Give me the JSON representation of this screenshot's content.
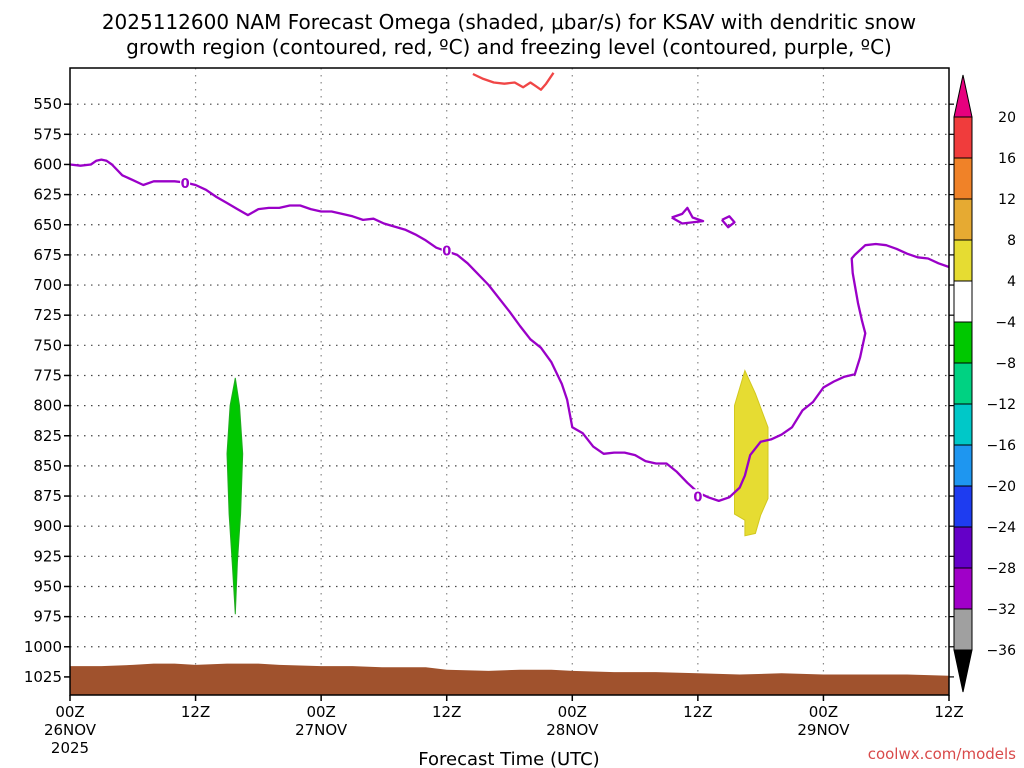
{
  "chart_data": {
    "type": "time-height",
    "title_line1": "2025112600 NAM Forecast Omega (shaded, μbar/s) for KSAV with dendritic snow",
    "title_line2": "growth region (contoured, red, ºC) and freezing level (contoured, purple, ºC)",
    "xlabel": "Forecast Time (UTC)",
    "credit": "coolwx.com/models",
    "start_hour": 0,
    "end_hour": 84,
    "ylim": [
      1040,
      520
    ],
    "y_ticks": [
      550,
      575,
      600,
      625,
      650,
      675,
      700,
      725,
      750,
      775,
      800,
      825,
      850,
      875,
      900,
      925,
      950,
      975,
      1000,
      1025
    ],
    "x_ticks": [
      {
        "hour": 0,
        "lines": [
          "00Z",
          "26NOV",
          "2025"
        ]
      },
      {
        "hour": 12,
        "lines": [
          "12Z"
        ]
      },
      {
        "hour": 24,
        "lines": [
          "00Z",
          "27NOV"
        ]
      },
      {
        "hour": 36,
        "lines": [
          "12Z"
        ]
      },
      {
        "hour": 48,
        "lines": [
          "00Z",
          "28NOV"
        ]
      },
      {
        "hour": 60,
        "lines": [
          "12Z"
        ]
      },
      {
        "hour": 72,
        "lines": [
          "00Z",
          "29NOV"
        ]
      },
      {
        "hour": 84,
        "lines": [
          "12Z"
        ]
      }
    ],
    "colorbar": {
      "labels": [
        "20",
        "16",
        "12",
        "8",
        "4",
        "−4",
        "−8",
        "−12",
        "−16",
        "−20",
        "−24",
        "−28",
        "−32",
        "−36"
      ],
      "top_arrow_color": "#e6007e",
      "bottom_arrow_color": "#000000",
      "colors": [
        "#f03c3c",
        "#f08228",
        "#e6aa32",
        "#e6dc32",
        "#ffffff",
        "#00c800",
        "#00d282",
        "#00c8c8",
        "#1e96f0",
        "#1e3cf0",
        "#6400c8",
        "#a000c8",
        "#a0a0a0"
      ]
    },
    "freezing_level": {
      "color": "#9a00c8",
      "label": "0",
      "label_points": [
        {
          "t": 11,
          "p": 616
        },
        {
          "t": 36,
          "p": 672
        },
        {
          "t": 60,
          "p": 876
        }
      ],
      "points": [
        [
          0,
          600
        ],
        [
          1,
          601
        ],
        [
          2,
          600
        ],
        [
          2.5,
          597
        ],
        [
          3,
          596
        ],
        [
          3.5,
          597
        ],
        [
          4,
          600
        ],
        [
          5,
          609
        ],
        [
          6,
          613
        ],
        [
          7,
          617
        ],
        [
          8,
          614
        ],
        [
          10,
          614
        ],
        [
          11,
          615
        ],
        [
          12,
          617
        ],
        [
          13,
          621
        ],
        [
          14,
          627
        ],
        [
          15,
          632
        ],
        [
          16,
          637
        ],
        [
          17,
          642
        ],
        [
          18,
          637
        ],
        [
          19,
          636
        ],
        [
          20,
          636
        ],
        [
          21,
          634
        ],
        [
          22,
          634
        ],
        [
          23,
          637
        ],
        [
          24,
          639
        ],
        [
          25,
          639
        ],
        [
          26,
          641
        ],
        [
          27,
          643
        ],
        [
          28,
          646
        ],
        [
          29,
          645
        ],
        [
          30,
          649
        ],
        [
          32,
          654
        ],
        [
          33,
          658
        ],
        [
          34,
          663
        ],
        [
          35,
          669
        ],
        [
          36,
          672
        ],
        [
          37,
          675
        ],
        [
          38,
          682
        ],
        [
          40,
          700
        ],
        [
          42,
          722
        ],
        [
          43,
          734
        ],
        [
          44,
          745
        ],
        [
          45,
          752
        ],
        [
          46,
          764
        ],
        [
          47,
          782
        ],
        [
          47.5,
          795
        ],
        [
          48,
          818
        ],
        [
          49,
          823
        ],
        [
          50,
          834
        ],
        [
          51,
          840
        ],
        [
          52,
          839
        ],
        [
          53,
          839
        ],
        [
          54,
          841
        ],
        [
          55,
          846
        ],
        [
          56,
          848
        ],
        [
          57,
          848
        ],
        [
          58,
          855
        ],
        [
          59,
          864
        ],
        [
          60,
          872
        ],
        [
          61,
          876
        ],
        [
          62,
          879
        ],
        [
          63,
          876
        ],
        [
          64,
          868
        ],
        [
          64.5,
          858
        ],
        [
          65,
          841
        ],
        [
          66,
          830
        ],
        [
          67,
          828
        ],
        [
          68,
          824
        ],
        [
          69,
          818
        ],
        [
          70,
          804
        ],
        [
          71,
          797
        ],
        [
          72,
          785
        ],
        [
          73,
          780
        ],
        [
          74,
          776
        ],
        [
          75,
          774
        ],
        [
          75.5,
          760
        ],
        [
          76,
          740
        ],
        [
          75.7,
          730
        ],
        [
          75.3,
          715
        ],
        [
          75,
          700
        ],
        [
          74.8,
          690
        ],
        [
          74.7,
          678
        ],
        [
          75,
          675
        ],
        [
          76,
          667
        ],
        [
          77,
          666
        ],
        [
          78,
          667
        ],
        [
          79,
          670
        ],
        [
          80,
          674
        ],
        [
          81,
          677
        ],
        [
          82,
          678
        ],
        [
          83,
          682
        ],
        [
          84,
          685
        ]
      ],
      "islands": [
        [
          [
            57.5,
            644
          ],
          [
            58.5,
            641
          ],
          [
            59,
            636
          ],
          [
            59.5,
            644
          ],
          [
            60.5,
            647
          ],
          [
            58.5,
            649
          ],
          [
            57.5,
            644
          ]
        ],
        [
          [
            62.3,
            646
          ],
          [
            63,
            643
          ],
          [
            63.5,
            648
          ],
          [
            62.9,
            652
          ],
          [
            62.3,
            646
          ]
        ]
      ]
    },
    "dendritic_growth_contour": {
      "color": "#f04646",
      "points": [
        [
          38.5,
          525
        ],
        [
          39.5,
          529
        ],
        [
          40.5,
          532
        ],
        [
          41.5,
          533
        ],
        [
          42.5,
          532
        ],
        [
          43.3,
          536
        ],
        [
          44,
          532
        ],
        [
          44.5,
          535
        ],
        [
          45,
          538
        ],
        [
          45.5,
          533
        ],
        [
          46.2,
          524
        ]
      ]
    },
    "omega_regions": [
      {
        "name": "green-updraft",
        "color": "#00c800",
        "outline": "#22aa22",
        "points": [
          [
            15.8,
            777
          ],
          [
            16.2,
            800
          ],
          [
            16.5,
            840
          ],
          [
            16.3,
            890
          ],
          [
            16.0,
            930
          ],
          [
            15.8,
            973
          ],
          [
            15.5,
            930
          ],
          [
            15.2,
            890
          ],
          [
            15.0,
            840
          ],
          [
            15.3,
            800
          ],
          [
            15.8,
            777
          ]
        ]
      },
      {
        "name": "yellow-descent",
        "color": "#e6dc32",
        "outline": "#d2c81e",
        "points": [
          [
            64.5,
            771
          ],
          [
            65.5,
            790
          ],
          [
            66.7,
            818
          ],
          [
            66.7,
            877
          ],
          [
            66,
            891
          ],
          [
            65.5,
            906
          ],
          [
            64.5,
            908
          ],
          [
            64.5,
            895
          ],
          [
            63.5,
            890
          ],
          [
            63.5,
            800
          ],
          [
            64.5,
            771
          ]
        ]
      }
    ],
    "terrain": {
      "color": "#a0522d",
      "points": [
        [
          0,
          1016
        ],
        [
          3,
          1016
        ],
        [
          6,
          1015
        ],
        [
          8,
          1014
        ],
        [
          10,
          1014
        ],
        [
          12,
          1015
        ],
        [
          15,
          1014
        ],
        [
          18,
          1014
        ],
        [
          20,
          1015
        ],
        [
          24,
          1016
        ],
        [
          27,
          1016
        ],
        [
          30,
          1017
        ],
        [
          34,
          1017
        ],
        [
          36,
          1019
        ],
        [
          40,
          1020
        ],
        [
          43,
          1019
        ],
        [
          46,
          1019
        ],
        [
          48,
          1020
        ],
        [
          52,
          1021
        ],
        [
          56,
          1021
        ],
        [
          60,
          1022
        ],
        [
          64,
          1023
        ],
        [
          68,
          1022
        ],
        [
          72,
          1023
        ],
        [
          76,
          1023
        ],
        [
          80,
          1023
        ],
        [
          84,
          1024
        ]
      ]
    }
  }
}
